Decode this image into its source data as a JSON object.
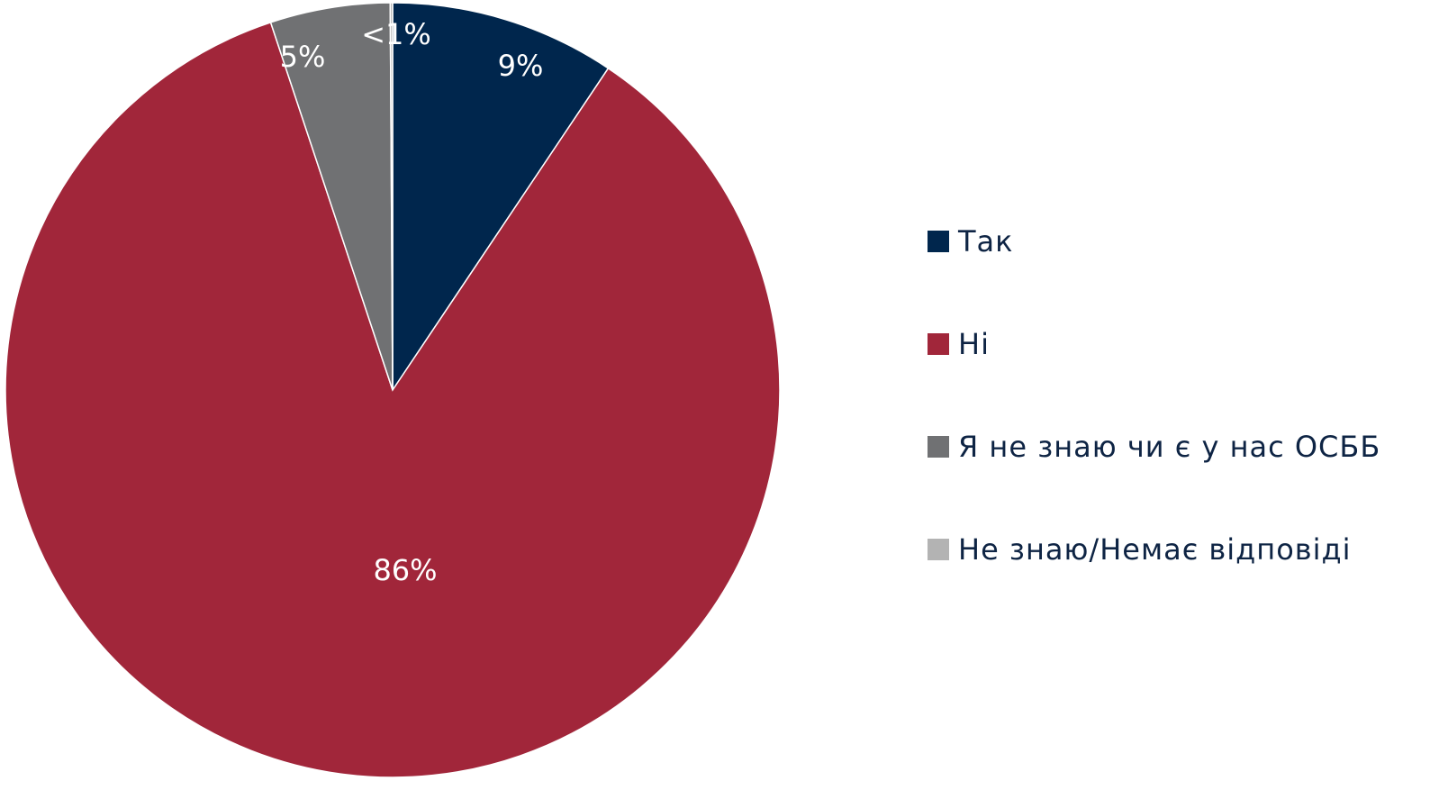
{
  "chart_data": {
    "type": "pie",
    "title": "",
    "start_angle_deg": 0,
    "direction": "clockwise",
    "legend_position": "right",
    "slices": [
      {
        "name": "Так",
        "value": 9.4,
        "label": "9%",
        "color": "#00264d"
      },
      {
        "name": "Ні",
        "value": 85.5,
        "label": "86%",
        "color": "#a1263a"
      },
      {
        "name": "Я не знаю чи є у нас ОСББ",
        "value": 5.0,
        "label": "5%",
        "color": "#707173"
      },
      {
        "name": "Не знаю/Немає відповіді",
        "value": 0.1,
        "label": "<1%",
        "color": "#b3b3b3"
      }
    ]
  }
}
